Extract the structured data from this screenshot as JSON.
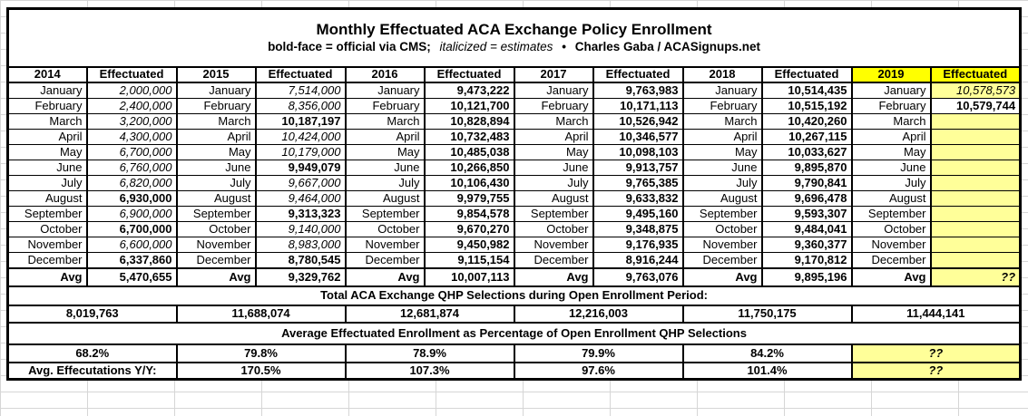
{
  "title": "Monthly Effectuated ACA Exchange Policy Enrollment",
  "subtitle": {
    "bold_note": "bold-face = official via CMS;",
    "italic_note": "italicized = estimates",
    "bullet": "•",
    "credit": "Charles Gaba / ACASignups.net"
  },
  "labels": {
    "effectuated": "Effectuated",
    "avg": "Avg"
  },
  "colors": {
    "header_highlight": "#FFFF00",
    "pending_highlight": "#FFFF99"
  },
  "months": [
    "January",
    "February",
    "March",
    "April",
    "May",
    "June",
    "July",
    "August",
    "September",
    "October",
    "November",
    "December"
  ],
  "years": [
    {
      "year": "2014",
      "highlight": false,
      "values": [
        {
          "v": "2,000,000",
          "s": "i"
        },
        {
          "v": "2,400,000",
          "s": "i"
        },
        {
          "v": "3,200,000",
          "s": "i"
        },
        {
          "v": "4,300,000",
          "s": "i"
        },
        {
          "v": "6,700,000",
          "s": "i"
        },
        {
          "v": "6,760,000",
          "s": "i"
        },
        {
          "v": "6,820,000",
          "s": "i"
        },
        {
          "v": "6,930,000",
          "s": "b"
        },
        {
          "v": "6,900,000",
          "s": "i"
        },
        {
          "v": "6,700,000",
          "s": "b"
        },
        {
          "v": "6,600,000",
          "s": "i"
        },
        {
          "v": "6,337,860",
          "s": "b"
        }
      ],
      "avg": {
        "v": "5,470,655",
        "s": "b"
      }
    },
    {
      "year": "2015",
      "highlight": false,
      "values": [
        {
          "v": "7,514,000",
          "s": "i"
        },
        {
          "v": "8,356,000",
          "s": "i"
        },
        {
          "v": "10,187,197",
          "s": "b"
        },
        {
          "v": "10,424,000",
          "s": "i"
        },
        {
          "v": "10,179,000",
          "s": "i"
        },
        {
          "v": "9,949,079",
          "s": "b"
        },
        {
          "v": "9,667,000",
          "s": "i"
        },
        {
          "v": "9,464,000",
          "s": "i"
        },
        {
          "v": "9,313,323",
          "s": "b"
        },
        {
          "v": "9,140,000",
          "s": "i"
        },
        {
          "v": "8,983,000",
          "s": "i"
        },
        {
          "v": "8,780,545",
          "s": "b"
        }
      ],
      "avg": {
        "v": "9,329,762",
        "s": "b"
      }
    },
    {
      "year": "2016",
      "highlight": false,
      "values": [
        {
          "v": "9,473,222",
          "s": "b"
        },
        {
          "v": "10,121,700",
          "s": "b"
        },
        {
          "v": "10,828,894",
          "s": "b"
        },
        {
          "v": "10,732,483",
          "s": "b"
        },
        {
          "v": "10,485,038",
          "s": "b"
        },
        {
          "v": "10,266,850",
          "s": "b"
        },
        {
          "v": "10,106,430",
          "s": "b"
        },
        {
          "v": "9,979,755",
          "s": "b"
        },
        {
          "v": "9,854,578",
          "s": "b"
        },
        {
          "v": "9,670,270",
          "s": "b"
        },
        {
          "v": "9,450,982",
          "s": "b"
        },
        {
          "v": "9,115,154",
          "s": "b"
        }
      ],
      "avg": {
        "v": "10,007,113",
        "s": "b"
      }
    },
    {
      "year": "2017",
      "highlight": false,
      "values": [
        {
          "v": "9,763,983",
          "s": "b"
        },
        {
          "v": "10,171,113",
          "s": "b"
        },
        {
          "v": "10,526,942",
          "s": "b"
        },
        {
          "v": "10,346,577",
          "s": "b"
        },
        {
          "v": "10,098,103",
          "s": "b"
        },
        {
          "v": "9,913,757",
          "s": "b"
        },
        {
          "v": "9,765,385",
          "s": "b"
        },
        {
          "v": "9,633,832",
          "s": "b"
        },
        {
          "v": "9,495,160",
          "s": "b"
        },
        {
          "v": "9,348,875",
          "s": "b"
        },
        {
          "v": "9,176,935",
          "s": "b"
        },
        {
          "v": "8,916,244",
          "s": "b"
        }
      ],
      "avg": {
        "v": "9,763,076",
        "s": "b"
      }
    },
    {
      "year": "2018",
      "highlight": false,
      "values": [
        {
          "v": "10,514,435",
          "s": "b"
        },
        {
          "v": "10,515,192",
          "s": "b"
        },
        {
          "v": "10,420,260",
          "s": "b"
        },
        {
          "v": "10,267,115",
          "s": "b"
        },
        {
          "v": "10,033,627",
          "s": "b"
        },
        {
          "v": "9,895,870",
          "s": "b"
        },
        {
          "v": "9,790,841",
          "s": "b"
        },
        {
          "v": "9,696,478",
          "s": "b"
        },
        {
          "v": "9,593,307",
          "s": "b"
        },
        {
          "v": "9,484,041",
          "s": "b"
        },
        {
          "v": "9,360,377",
          "s": "b"
        },
        {
          "v": "9,170,812",
          "s": "b"
        }
      ],
      "avg": {
        "v": "9,895,196",
        "s": "b"
      }
    },
    {
      "year": "2019",
      "highlight": true,
      "values": [
        {
          "v": "10,578,573",
          "s": "i",
          "bg": "ly"
        },
        {
          "v": "10,579,744",
          "s": "b"
        },
        {
          "v": "",
          "s": "",
          "bg": "ly"
        },
        {
          "v": "",
          "s": "",
          "bg": "ly"
        },
        {
          "v": "",
          "s": "",
          "bg": "ly"
        },
        {
          "v": "",
          "s": "",
          "bg": "ly"
        },
        {
          "v": "",
          "s": "",
          "bg": "ly"
        },
        {
          "v": "",
          "s": "",
          "bg": "ly"
        },
        {
          "v": "",
          "s": "",
          "bg": "ly"
        },
        {
          "v": "",
          "s": "",
          "bg": "ly"
        },
        {
          "v": "",
          "s": "",
          "bg": "ly"
        },
        {
          "v": "",
          "s": "",
          "bg": "ly"
        }
      ],
      "avg": {
        "v": "??",
        "s": "bi",
        "bg": "ly"
      }
    }
  ],
  "totals_section": {
    "header": "Total ACA Exchange QHP Selections during Open Enrollment Period:",
    "values": [
      "8,019,763",
      "11,688,074",
      "12,681,874",
      "12,216,003",
      "11,750,175",
      "11,444,141"
    ]
  },
  "percent_section": {
    "header": "Average Effectuated Enrollment as Percentage of Open Enrollment QHP Selections",
    "values": [
      {
        "v": "68.2%",
        "s": "b"
      },
      {
        "v": "79.8%",
        "s": "b"
      },
      {
        "v": "78.9%",
        "s": "b"
      },
      {
        "v": "79.9%",
        "s": "b"
      },
      {
        "v": "84.2%",
        "s": "b"
      },
      {
        "v": "??",
        "s": "bi",
        "bg": "ly"
      }
    ]
  },
  "yoy_section": {
    "label": "Avg. Effecutations Y/Y:",
    "values": [
      {
        "v": "170.5%",
        "s": "b"
      },
      {
        "v": "107.3%",
        "s": "b"
      },
      {
        "v": "97.6%",
        "s": "b"
      },
      {
        "v": "101.4%",
        "s": "b"
      },
      {
        "v": "??",
        "s": "bi",
        "bg": "ly"
      }
    ]
  }
}
